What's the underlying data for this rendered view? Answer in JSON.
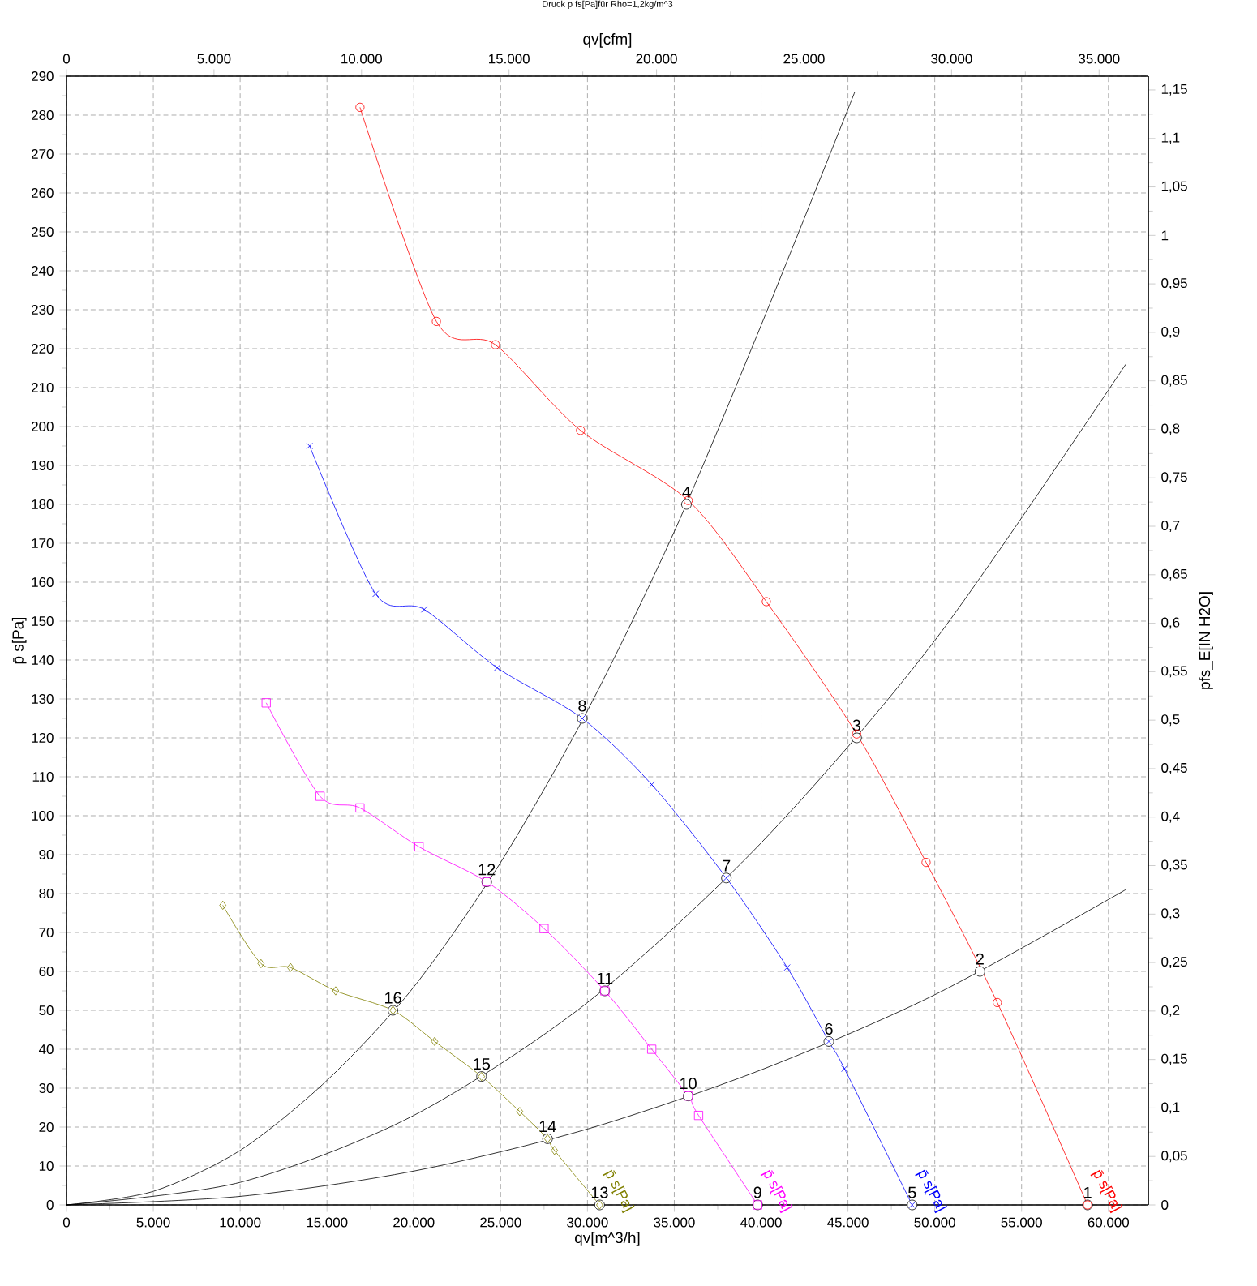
{
  "chart_data": {
    "type": "line",
    "title": "Druck p fs[Pa]für Rho=1,2kg/m^3",
    "xlabel": "qv[m^3/h]",
    "ylabel": "p̄ s[Pa]",
    "x2label": "qv[cfm]",
    "y2label": "pfs_E[IN H2O]",
    "xlim": [
      0,
      62300
    ],
    "ylim": [
      0,
      290
    ],
    "x2lim": [
      0,
      36670
    ],
    "y2lim": [
      0,
      1.1642
    ],
    "xticks": [
      0,
      {
        "value": 5000,
        "label": "5.000"
      },
      {
        "value": 10000,
        "label": "10.000"
      },
      {
        "value": 15000,
        "label": "15.000"
      },
      {
        "value": 20000,
        "label": "20.000"
      },
      {
        "value": 25000,
        "label": "25.000"
      },
      {
        "value": 30000,
        "label": "30.000"
      },
      {
        "value": 35000,
        "label": "35.000"
      },
      {
        "value": 40000,
        "label": "40.000"
      },
      {
        "value": 45000,
        "label": "45.000"
      },
      {
        "value": 50000,
        "label": "50.000"
      },
      {
        "value": 55000,
        "label": "55.000"
      },
      {
        "value": 60000,
        "label": "60.000"
      }
    ],
    "x2ticks": [
      0,
      {
        "value": 5000,
        "label": "5.000"
      },
      {
        "value": 10000,
        "label": "10.000"
      },
      {
        "value": 15000,
        "label": "15.000"
      },
      {
        "value": 20000,
        "label": "20.000"
      },
      {
        "value": 25000,
        "label": "25.000"
      },
      {
        "value": 30000,
        "label": "30.000"
      },
      {
        "value": 35000,
        "label": "35.000"
      }
    ],
    "yticks": [
      0,
      10,
      20,
      30,
      40,
      50,
      60,
      70,
      80,
      90,
      100,
      110,
      120,
      130,
      140,
      150,
      160,
      170,
      180,
      190,
      200,
      210,
      220,
      230,
      240,
      250,
      260,
      270,
      280,
      290
    ],
    "y2ticks": [
      0,
      {
        "value": 0.05,
        "label": "0,05"
      },
      {
        "value": 0.1,
        "label": "0,1"
      },
      {
        "value": 0.15,
        "label": "0,15"
      },
      {
        "value": 0.2,
        "label": "0,2"
      },
      {
        "value": 0.25,
        "label": "0,25"
      },
      {
        "value": 0.3,
        "label": "0,3"
      },
      {
        "value": 0.35,
        "label": "0,35"
      },
      {
        "value": 0.4,
        "label": "0,4"
      },
      {
        "value": 0.45,
        "label": "0,45"
      },
      {
        "value": 0.5,
        "label": "0,5"
      },
      {
        "value": 0.55,
        "label": "0,55"
      },
      {
        "value": 0.6,
        "label": "0,6"
      },
      {
        "value": 0.65,
        "label": "0,65"
      },
      {
        "value": 0.7,
        "label": "0,7"
      },
      {
        "value": 0.75,
        "label": "0,75"
      },
      {
        "value": 0.8,
        "label": "0,8"
      },
      {
        "value": 0.85,
        "label": "0,85"
      },
      {
        "value": 0.9,
        "label": "0,9"
      },
      {
        "value": 0.95,
        "label": "0,95"
      },
      {
        "value": 1,
        "label": "1"
      },
      {
        "value": 1.05,
        "label": "1,05"
      },
      {
        "value": 1.1,
        "label": "1,1"
      },
      {
        "value": 1.15,
        "label": "1,15"
      }
    ],
    "grid": true,
    "line_style": "solid",
    "series": [
      {
        "name": "p̄ s[Pa]",
        "color": "#ff0000",
        "marker": "circle",
        "x": [
          16900,
          21300,
          24700,
          29600,
          35800,
          40300,
          45500,
          49500,
          53600,
          58800
        ],
        "values": [
          282,
          227,
          221,
          199,
          181,
          155,
          121,
          88,
          52,
          0
        ]
      },
      {
        "name": "p̄ s[Pa]",
        "color": "#0000ff",
        "marker": "cross",
        "x": [
          14000,
          17800,
          20600,
          24800,
          29700,
          33700,
          38000,
          41500,
          43900,
          44800,
          48700
        ],
        "values": [
          195,
          157,
          153,
          138,
          125,
          108,
          84,
          61,
          42,
          35,
          0
        ]
      },
      {
        "name": "p̄ s[Pa]",
        "color": "#ff00ff",
        "marker": "square",
        "x": [
          11500,
          14600,
          16900,
          20300,
          24200,
          27500,
          31000,
          33700,
          35800,
          36400,
          39800
        ],
        "values": [
          129,
          105,
          102,
          92,
          83,
          71,
          55,
          40,
          28,
          23,
          0
        ]
      },
      {
        "name": "p̄ s[Pa]",
        "color": "#808000",
        "marker": "diamond",
        "x": [
          9000,
          11200,
          12900,
          15500,
          18800,
          21200,
          23900,
          26100,
          27700,
          28100,
          30700
        ],
        "values": [
          77,
          62,
          61,
          55,
          50,
          42,
          33,
          24,
          17,
          14,
          0
        ]
      },
      {
        "color": "#000000",
        "marker": "none",
        "x": [
          0,
          5000,
          10000,
          15000,
          20000,
          25000,
          30000,
          35000,
          40000,
          45400
        ],
        "values": [
          0,
          3.5,
          14,
          32,
          56,
          88,
          127,
          173,
          226,
          286
        ]
      },
      {
        "color": "#000000",
        "marker": "none",
        "x": [
          0,
          10000,
          20000,
          30000,
          40000,
          50000,
          61000
        ],
        "values": [
          0,
          5.8,
          23,
          52,
          93,
          145,
          216
        ]
      },
      {
        "color": "#000000",
        "marker": "none",
        "x": [
          0,
          10000,
          20000,
          30000,
          40000,
          50000,
          61000
        ],
        "values": [
          0,
          2.2,
          8.7,
          19.5,
          34.7,
          54,
          81
        ]
      }
    ],
    "annotations": [
      {
        "text": "1",
        "x": 58800,
        "y": 0
      },
      {
        "text": "2",
        "x": 52600,
        "y": 60
      },
      {
        "text": "3",
        "x": 45500,
        "y": 120
      },
      {
        "text": "4",
        "x": 35700,
        "y": 180
      },
      {
        "text": "5",
        "x": 48700,
        "y": 0
      },
      {
        "text": "6",
        "x": 43900,
        "y": 42
      },
      {
        "text": "7",
        "x": 38000,
        "y": 84
      },
      {
        "text": "8",
        "x": 29700,
        "y": 125
      },
      {
        "text": "9",
        "x": 39800,
        "y": 0
      },
      {
        "text": "10",
        "x": 35800,
        "y": 28
      },
      {
        "text": "11",
        "x": 31000,
        "y": 55
      },
      {
        "text": "12",
        "x": 24200,
        "y": 83
      },
      {
        "text": "13",
        "x": 30700,
        "y": 0
      },
      {
        "text": "14",
        "x": 27700,
        "y": 17
      },
      {
        "text": "15",
        "x": 23900,
        "y": 33
      },
      {
        "text": "16",
        "x": 18800,
        "y": 50
      }
    ]
  }
}
